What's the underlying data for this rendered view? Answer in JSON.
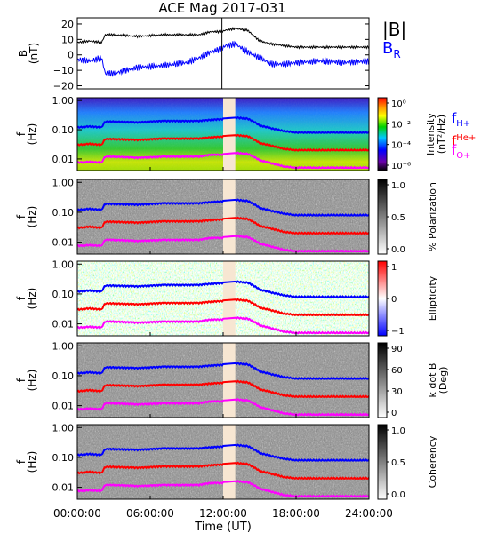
{
  "title": "ACE Mag 2017-031",
  "xlabel": "Time (UT)",
  "x_ticks": [
    "00:00:00",
    "06:00:00",
    "12:00:00",
    "18:00:00",
    "24:00:00"
  ],
  "colors": {
    "B_total": "#000000",
    "B_R": "#0000ff",
    "f_H": "#0000ff",
    "f_He": "#ff0000",
    "f_O": "#ff00ff",
    "gap_shade": "#f7e6d2"
  },
  "chart_data": [
    {
      "type": "line",
      "ylabel": "B\n(nT)",
      "ylim": [
        -22,
        24
      ],
      "y_ticks": [
        "20",
        "10",
        "0",
        "−10",
        "−20"
      ],
      "y_tick_values": [
        20,
        10,
        0,
        -10,
        -20
      ],
      "legend": [
        "|B|",
        "B_R"
      ],
      "legend_display": {
        "B_total": "|B|",
        "B_R_main": "B",
        "B_R_sub": "R"
      },
      "x_hours": [
        0,
        1,
        2,
        2.3,
        3,
        5,
        7,
        9,
        10,
        11,
        11.9,
        12.2,
        13,
        14,
        15,
        16,
        17,
        18,
        20,
        22,
        24
      ],
      "series": [
        {
          "name": "|B|",
          "values": [
            8,
            9,
            8,
            13,
            13,
            12,
            13,
            13,
            13,
            15,
            15,
            16,
            17,
            16,
            9,
            7,
            6,
            5,
            5,
            5,
            5
          ]
        },
        {
          "name": "B_R",
          "values": [
            -3,
            -4,
            -2,
            -12,
            -12,
            -8,
            -7,
            -5,
            -2,
            2,
            4,
            6,
            7,
            2,
            -2,
            -6,
            -6,
            -5,
            -4,
            -5,
            -4
          ]
        }
      ]
    },
    {
      "type": "heatmap",
      "ylabel": "f\n(Hz)",
      "y_log": true,
      "y_ticks": [
        "1.00",
        "0.10",
        "0.01"
      ],
      "y_tick_values": [
        1.0,
        0.1,
        0.01
      ],
      "colorbar_label": "Intensity\n(nT²/Hz)",
      "colorbar_ticks": [
        "10⁰",
        "10⁻²",
        "10⁻⁴",
        "10⁻⁶"
      ],
      "data_gap_hours": [
        12.0,
        13.0
      ],
      "legend": [
        "f_H+",
        "f_He+",
        "f_O+"
      ],
      "legend_display": [
        {
          "main": "f",
          "sub": "H+"
        },
        {
          "main": "f",
          "sup": "He+"
        },
        {
          "main": "f",
          "sub": "O+"
        }
      ]
    },
    {
      "type": "heatmap",
      "ylabel": "f\n(Hz)",
      "y_log": true,
      "y_ticks": [
        "1.00",
        "0.10",
        "0.01"
      ],
      "y_tick_values": [
        1.0,
        0.1,
        0.01
      ],
      "colorbar_label": "% Polarization",
      "colorbar_ticks": [
        "1.0",
        "0.5",
        "0.0"
      ],
      "data_gap_hours": [
        12.0,
        13.0
      ]
    },
    {
      "type": "heatmap",
      "ylabel": "f\n(Hz)",
      "y_log": true,
      "y_ticks": [
        "1.00",
        "0.10",
        "0.01"
      ],
      "y_tick_values": [
        1.0,
        0.1,
        0.01
      ],
      "colorbar_label": "Ellipticity",
      "colorbar_ticks": [
        "1",
        "0",
        "−1"
      ],
      "data_gap_hours": [
        12.0,
        13.0
      ]
    },
    {
      "type": "heatmap",
      "ylabel": "f\n(Hz)",
      "y_log": true,
      "y_ticks": [
        "1.00",
        "0.10",
        "0.01"
      ],
      "y_tick_values": [
        1.0,
        0.1,
        0.01
      ],
      "colorbar_label": "k dot B\n(Deg)",
      "colorbar_ticks": [
        "90",
        "60",
        "30",
        "0"
      ],
      "data_gap_hours": [
        12.0,
        13.0
      ]
    },
    {
      "type": "heatmap",
      "ylabel": "f\n(Hz)",
      "y_log": true,
      "y_ticks": [
        "1.00",
        "0.10",
        "0.01"
      ],
      "y_tick_values": [
        1.0,
        0.1,
        0.01
      ],
      "colorbar_label": "Coherency",
      "colorbar_ticks": [
        "1.0",
        "0.5",
        "0.0"
      ],
      "data_gap_hours": [
        12.0,
        13.0
      ]
    }
  ],
  "gyro_frequencies": {
    "x_hours": [
      0,
      1,
      2,
      2.3,
      3,
      5,
      7,
      9,
      10,
      11,
      11.9,
      12.2,
      13,
      14,
      15,
      16,
      17,
      18,
      20,
      22,
      24
    ],
    "f_H_hz": [
      0.12,
      0.13,
      0.12,
      0.19,
      0.19,
      0.18,
      0.2,
      0.2,
      0.2,
      0.22,
      0.23,
      0.24,
      0.26,
      0.24,
      0.14,
      0.11,
      0.09,
      0.08,
      0.08,
      0.08,
      0.08
    ],
    "f_He_hz": [
      0.03,
      0.033,
      0.03,
      0.048,
      0.048,
      0.045,
      0.05,
      0.05,
      0.05,
      0.055,
      0.058,
      0.06,
      0.065,
      0.06,
      0.035,
      0.028,
      0.022,
      0.02,
      0.02,
      0.02,
      0.02
    ],
    "f_O_hz": [
      0.0075,
      0.008,
      0.0075,
      0.012,
      0.012,
      0.011,
      0.012,
      0.012,
      0.012,
      0.014,
      0.014,
      0.015,
      0.016,
      0.015,
      0.009,
      0.007,
      0.0055,
      0.005,
      0.005,
      0.005,
      0.005
    ]
  }
}
